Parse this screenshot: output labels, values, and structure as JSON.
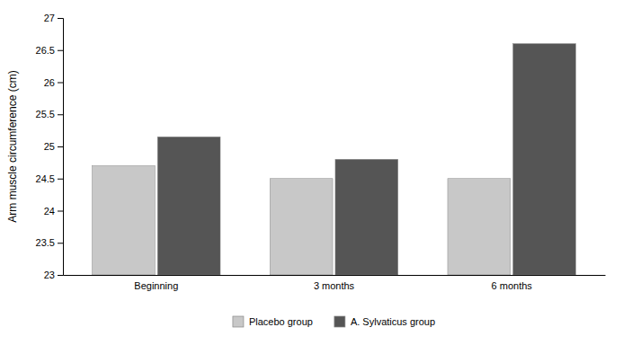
{
  "chart_data": {
    "type": "bar",
    "categories": [
      "Beginning",
      "3 months",
      "6 months"
    ],
    "series": [
      {
        "name": "Placebo group",
        "color": "#c8c8c8",
        "values": [
          24.7,
          24.5,
          24.5
        ]
      },
      {
        "name": "A. Sylvaticus group",
        "color": "#555555",
        "values": [
          25.15,
          24.8,
          26.6
        ]
      }
    ],
    "ylabel": "Arm muscle circumference (cm)",
    "ylim": [
      23,
      27
    ],
    "yticks": [
      23,
      23.5,
      24,
      24.5,
      25,
      25.5,
      26,
      26.5,
      27
    ],
    "grid": false,
    "legend": "bottom"
  }
}
